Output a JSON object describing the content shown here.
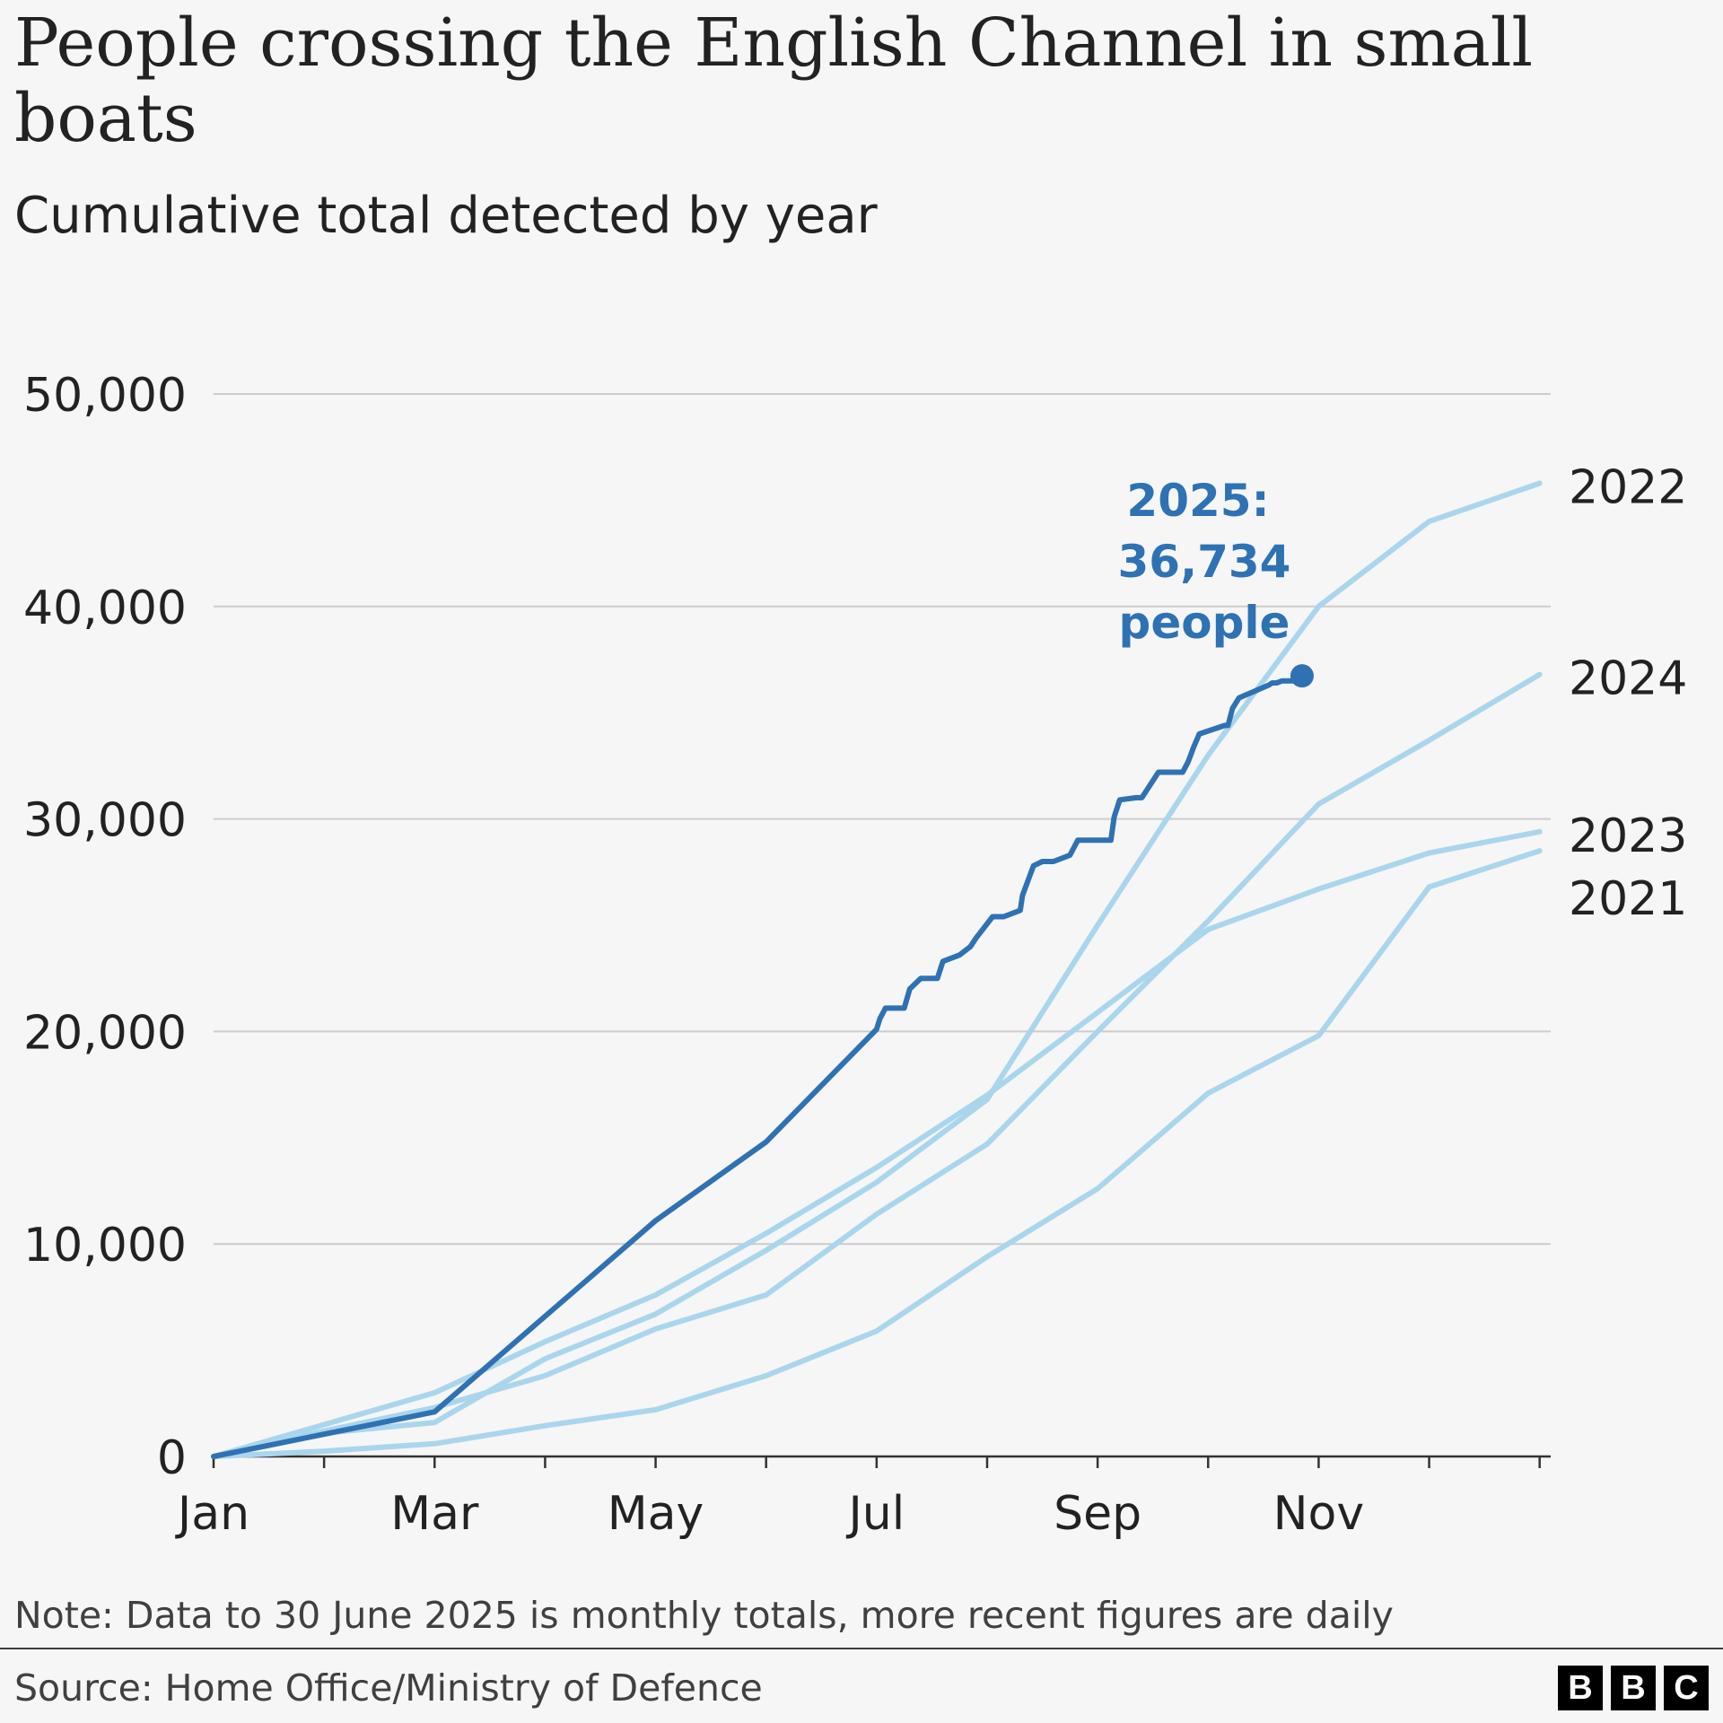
{
  "title": "People crossing the English Channel in small boats",
  "subtitle": "Cumulative total detected by year",
  "note": "Note: Data to 30 June 2025 is monthly totals, more recent figures are daily",
  "source": "Source: Home Office/Ministry of Defence",
  "logo": [
    "B",
    "B",
    "C"
  ],
  "annotation": {
    "line1": "2025:",
    "line2": "36,734",
    "line3": "people"
  },
  "colors": {
    "highlight": "#2e72b4",
    "past_years": "#a9d6ec",
    "grid": "#cccccc",
    "axis": "#333333",
    "text": "#222222"
  },
  "chart_data": {
    "type": "line",
    "title": "People crossing the English Channel in small boats",
    "subtitle": "Cumulative total detected by year",
    "x_unit": "month of year",
    "x_ticks": [
      1,
      2,
      3,
      4,
      5,
      6,
      7,
      8,
      9,
      10,
      11,
      12,
      13
    ],
    "x_tick_labels": [
      "Jan",
      "",
      "Mar",
      "",
      "May",
      "",
      "Jul",
      "",
      "Sep",
      "",
      "Nov",
      "",
      ""
    ],
    "xlim": [
      1,
      13.1
    ],
    "ylim": [
      0,
      50000
    ],
    "y_ticks": [
      0,
      10000,
      20000,
      30000,
      40000,
      50000
    ],
    "y_tick_labels": [
      "0",
      "10,000",
      "20,000",
      "30,000",
      "40,000",
      "50,000"
    ],
    "grid": true,
    "series": [
      {
        "name": "2021",
        "highlight": false,
        "x": [
          1,
          2,
          3,
          4,
          5,
          6,
          7,
          8,
          9,
          10,
          11,
          12,
          13
        ],
        "y": [
          0,
          250,
          600,
          1450,
          2200,
          3800,
          5900,
          9400,
          12600,
          17100,
          19800,
          26800,
          28500
        ]
      },
      {
        "name": "2022",
        "highlight": false,
        "x": [
          1,
          2,
          3,
          4,
          5,
          6,
          7,
          8,
          9,
          10,
          11,
          12,
          13
        ],
        "y": [
          0,
          1100,
          1600,
          4600,
          6700,
          9700,
          12900,
          16800,
          25000,
          33000,
          40000,
          44000,
          45800
        ]
      },
      {
        "name": "2023",
        "highlight": false,
        "x": [
          1,
          2,
          3,
          4,
          5,
          6,
          7,
          8,
          9,
          10,
          11,
          12,
          13
        ],
        "y": [
          0,
          1500,
          3000,
          5400,
          7600,
          10500,
          13600,
          17000,
          20900,
          24800,
          26700,
          28400,
          29400
        ]
      },
      {
        "name": "2024",
        "highlight": false,
        "x": [
          1,
          2,
          3,
          4,
          5,
          6,
          7,
          8,
          9,
          10,
          11,
          12,
          13
        ],
        "y": [
          0,
          1200,
          2300,
          3800,
          6000,
          7600,
          11400,
          14700,
          20000,
          25200,
          30700,
          33700,
          36800
        ]
      },
      {
        "name": "2025",
        "highlight": true,
        "x": [
          1,
          3,
          5,
          6,
          7,
          7.03,
          7.08,
          7.25,
          7.3,
          7.4,
          7.55,
          7.6,
          7.75,
          7.85,
          7.9,
          8.05,
          8.12,
          8.15,
          8.3,
          8.32,
          8.42,
          8.5,
          8.6,
          8.75,
          8.82,
          8.87,
          9.12,
          9.15,
          9.2,
          9.35,
          9.4,
          9.55,
          9.77,
          9.82,
          9.87,
          9.92,
          10.15,
          10.18,
          10.22,
          10.28,
          10.55,
          10.58,
          10.62,
          10.67,
          10.8,
          10.83,
          10.85
        ],
        "y": [
          0,
          2100,
          11100,
          14800,
          20100,
          20600,
          21100,
          21100,
          22000,
          22500,
          22500,
          23300,
          23600,
          24000,
          24400,
          25400,
          25400,
          25400,
          25700,
          26400,
          27800,
          28000,
          28000,
          28300,
          29000,
          29000,
          29000,
          30100,
          30900,
          31000,
          31000,
          32200,
          32200,
          32700,
          33400,
          34000,
          34400,
          34400,
          35200,
          35700,
          36300,
          36400,
          36400,
          36500,
          36500,
          36700,
          36734
        ]
      }
    ]
  }
}
